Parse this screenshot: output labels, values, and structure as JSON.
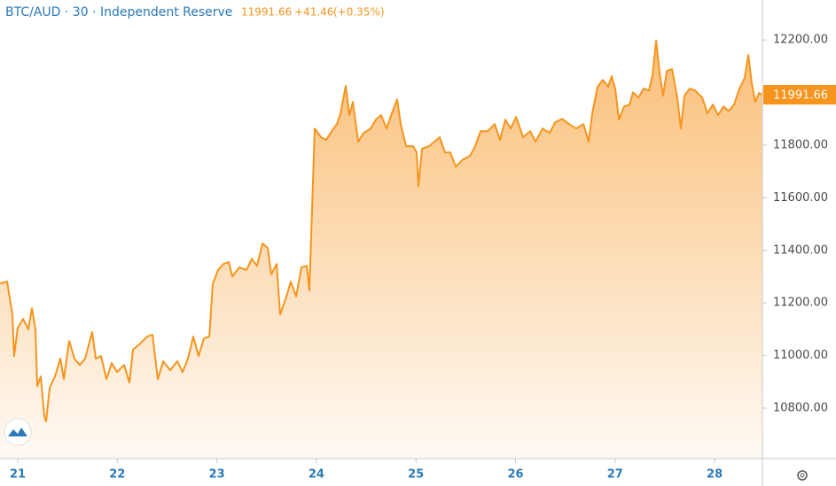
{
  "header": {
    "title": "BTC/AUD · 30 · Independent Reserve",
    "last": "11991.66",
    "change": "+41.46",
    "change_pct": "(+0.35%)"
  },
  "chart_data": {
    "type": "area",
    "color": "#f7941d",
    "x": [
      20.822,
      20.893,
      20.947,
      20.964,
      21.0,
      21.054,
      21.107,
      21.143,
      21.178,
      21.196,
      21.232,
      21.267,
      21.285,
      21.321,
      21.374,
      21.428,
      21.463,
      21.517,
      21.57,
      21.623,
      21.677,
      21.748,
      21.784,
      21.837,
      21.891,
      21.944,
      21.997,
      22.069,
      22.122,
      22.158,
      22.229,
      22.3,
      22.354,
      22.407,
      22.461,
      22.532,
      22.603,
      22.656,
      22.71,
      22.763,
      22.817,
      22.87,
      22.924,
      22.959,
      23.013,
      23.066,
      23.119,
      23.155,
      23.226,
      23.298,
      23.351,
      23.404,
      23.458,
      23.511,
      23.547,
      23.6,
      23.636,
      23.689,
      23.743,
      23.796,
      23.85,
      23.903,
      23.93,
      23.983,
      24.046,
      24.099,
      24.153,
      24.206,
      24.242,
      24.295,
      24.331,
      24.366,
      24.42,
      24.473,
      24.544,
      24.598,
      24.651,
      24.705,
      24.758,
      24.811,
      24.847,
      24.9,
      24.972,
      25.007,
      25.025,
      25.061,
      25.132,
      25.185,
      25.239,
      25.292,
      25.346,
      25.399,
      25.47,
      25.542,
      25.595,
      25.649,
      25.72,
      25.791,
      25.844,
      25.898,
      25.951,
      26.005,
      26.076,
      26.147,
      26.201,
      26.272,
      26.343,
      26.397,
      26.468,
      26.539,
      26.61,
      26.682,
      26.735,
      26.771,
      26.824,
      26.878,
      26.931,
      26.966,
      27.002,
      27.038,
      27.091,
      27.145,
      27.18,
      27.234,
      27.287,
      27.34,
      27.376,
      27.412,
      27.447,
      27.483,
      27.519,
      27.572,
      27.625,
      27.661,
      27.697,
      27.75,
      27.803,
      27.875,
      27.928,
      27.982,
      28.035,
      28.088,
      28.142,
      28.195,
      28.249,
      28.302,
      28.338,
      28.374,
      28.409,
      28.445,
      28.48
    ],
    "values": [
      11274,
      11281,
      11156,
      10998,
      11106,
      11139,
      11099,
      11180,
      11099,
      10883,
      10920,
      10769,
      10749,
      10877,
      10920,
      10988,
      10910,
      11055,
      10988,
      10964,
      10988,
      11089,
      10988,
      10998,
      10910,
      10971,
      10937,
      10964,
      10897,
      11022,
      11045,
      11072,
      11079,
      10910,
      10978,
      10944,
      10978,
      10937,
      10988,
      11072,
      10998,
      11065,
      11072,
      11274,
      11325,
      11348,
      11355,
      11301,
      11335,
      11325,
      11368,
      11341,
      11426,
      11409,
      11308,
      11348,
      11156,
      11213,
      11281,
      11224,
      11335,
      11341,
      11247,
      11863,
      11830,
      11820,
      11853,
      11880,
      11921,
      12025,
      11914,
      11964,
      11813,
      11846,
      11863,
      11897,
      11914,
      11863,
      11921,
      11974,
      11880,
      11796,
      11796,
      11772,
      11644,
      11786,
      11796,
      11813,
      11830,
      11772,
      11772,
      11718,
      11745,
      11759,
      11796,
      11853,
      11853,
      11880,
      11820,
      11897,
      11863,
      11907,
      11830,
      11853,
      11813,
      11863,
      11846,
      11887,
      11900,
      11880,
      11863,
      11880,
      11813,
      11921,
      12022,
      12048,
      12022,
      12062,
      12015,
      11897,
      11947,
      11954,
      12001,
      11981,
      12015,
      12008,
      12065,
      12197,
      12075,
      11988,
      12082,
      12089,
      11981,
      11863,
      11988,
      12015,
      12008,
      11981,
      11921,
      11954,
      11914,
      11947,
      11930,
      11954,
      12015,
      12055,
      12143,
      12032,
      11964,
      11998,
      11991.66
    ],
    "xlim": [
      20.822,
      28.48
    ],
    "xticks": [
      21,
      22,
      23,
      24,
      25,
      26,
      27,
      28
    ],
    "ylim": [
      10608,
      12352
    ],
    "yticks": [
      {
        "value": 10800,
        "label": "10800.00"
      },
      {
        "value": 11000,
        "label": "11000.00"
      },
      {
        "value": 11200,
        "label": "11200.00"
      },
      {
        "value": 11400,
        "label": "11400.00"
      },
      {
        "value": 11600,
        "label": "11600.00"
      },
      {
        "value": 11800,
        "label": "11800.00"
      },
      {
        "value": 12000,
        "label": "12000.00"
      },
      {
        "value": 12200,
        "label": "12200.00"
      }
    ]
  }
}
